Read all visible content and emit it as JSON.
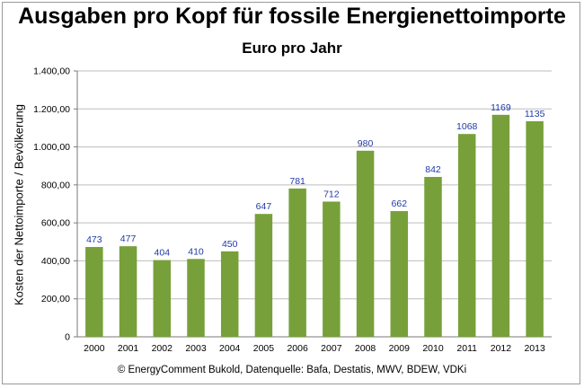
{
  "chart_data": {
    "type": "bar",
    "title": "Ausgaben pro Kopf für fossile Energienettoimporte",
    "subtitle": "Euro pro Jahr",
    "ylabel": "Kosten der Nettoimporte / Bevölkerung",
    "xlabel": "",
    "categories": [
      "2000",
      "2001",
      "2002",
      "2003",
      "2004",
      "2005",
      "2006",
      "2007",
      "2008",
      "2009",
      "2010",
      "2011",
      "2012",
      "2013"
    ],
    "values": [
      473,
      477,
      404,
      410,
      450,
      647,
      781,
      712,
      980,
      662,
      842,
      1068,
      1169,
      1135
    ],
    "ylim": [
      0,
      1400
    ],
    "yticks": [
      0,
      200,
      400,
      600,
      800,
      1000,
      1200,
      1400
    ],
    "ytick_labels": [
      "0",
      "200,00",
      "400,00",
      "600,00",
      "800,00",
      "1.000,00",
      "1.200,00",
      "1.400,00"
    ],
    "grid": true,
    "bar_color": "#77a03a",
    "data_label_color": "#1f3aa6",
    "source": "© EnergyComment Bukold, Datenquelle: Bafa, Destatis, MWV, BDEW, VDKi"
  }
}
